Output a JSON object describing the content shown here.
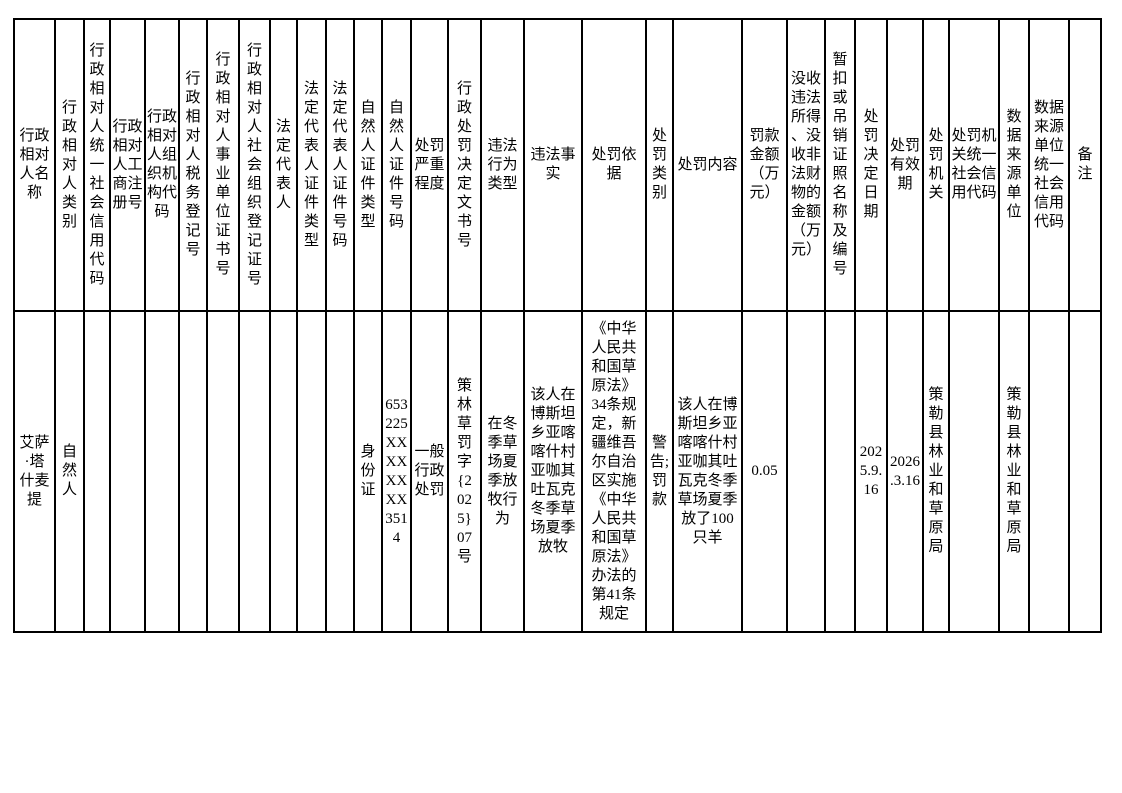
{
  "table": {
    "columns": [
      {
        "header": "行政相对人名称",
        "value": "艾萨·塔什麦提"
      },
      {
        "header": "行政相对人类别",
        "value": "自然人"
      },
      {
        "header": "行政相对人统一社会信用代码",
        "value": ""
      },
      {
        "header": "行政相对人工商注册号",
        "value": ""
      },
      {
        "header": "行政相对人组织机构代码",
        "value": ""
      },
      {
        "header": "行政相对人税务登记号",
        "value": ""
      },
      {
        "header": "行政相对人事业单位证书号",
        "value": ""
      },
      {
        "header": "行政相对人社会组织登记证号",
        "value": ""
      },
      {
        "header": "法定代表人",
        "value": ""
      },
      {
        "header": "法定代表人证件类型",
        "value": ""
      },
      {
        "header": "法定代表人证件号码",
        "value": ""
      },
      {
        "header": "自然人证件类型",
        "value": "身份证"
      },
      {
        "header": "自然人证件号码",
        "value": "653225XXXXXXXX3514"
      },
      {
        "header": "处罚严重程度",
        "value": "一般行政处罚"
      },
      {
        "header": "行政处罚决定文书号",
        "value": "策林草罚字{2025}07号"
      },
      {
        "header": "违法行为类型",
        "value": "在冬季草场夏季放牧行为"
      },
      {
        "header": "违法事实",
        "value": "该人在博斯坦乡亚喀喀什村亚咖其吐瓦克冬季草场夏季放牧"
      },
      {
        "header": "处罚依据",
        "value": "《中华人民共和国草原法》34条规定，新疆维吾尔自治区实施《中华人民共和国草原法》办法的第41条规定"
      },
      {
        "header": "处罚类别",
        "value": "警告;罚款"
      },
      {
        "header": "处罚内容",
        "value": "该人在博斯坦乡亚喀喀什村亚咖其吐瓦克冬季草场夏季放了100只羊"
      },
      {
        "header": "罚款金额（万元）",
        "value": "0.05"
      },
      {
        "header": "没收违法所得、没收非法财物的金额（万元）",
        "value": ""
      },
      {
        "header": "暂扣或吊销证照名称及编号",
        "value": ""
      },
      {
        "header": "处罚决定日期",
        "value": "2025.9.16"
      },
      {
        "header": "处罚有效期",
        "value": "2026.3.16"
      },
      {
        "header": "处罚机关",
        "value": "策勒县林业和草原局"
      },
      {
        "header": "处罚机关统一社会信用代码",
        "value": ""
      },
      {
        "header": "数据来源单位",
        "value": "策勒县林业和草原局"
      },
      {
        "header": "数据来源单位统一社会信用代码",
        "value": ""
      },
      {
        "header": "备注",
        "value": ""
      }
    ]
  }
}
